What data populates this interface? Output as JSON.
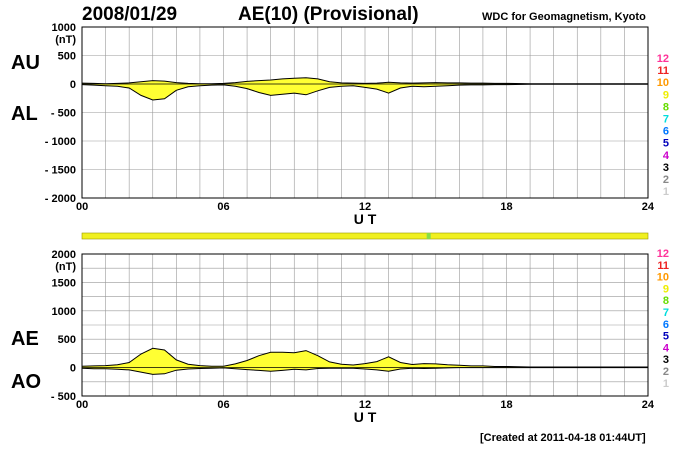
{
  "header": {
    "date": "2008/01/29",
    "title": "AE(10) (Provisional)",
    "source": "WDC for Geomagnetism, Kyoto"
  },
  "footer": {
    "created": "[Created at 2011-04-18 01:44UT]"
  },
  "colors": {
    "fill": "#ffff33",
    "grid": "#999999",
    "axis": "#000000",
    "status_bar": "#f0f020",
    "status_marker": "#88dd44"
  },
  "station_count_legend": [
    {
      "label": "12",
      "color": "#ff3399"
    },
    {
      "label": "11",
      "color": "#ee2222"
    },
    {
      "label": "10",
      "color": "#ff9900"
    },
    {
      "label": "9",
      "color": "#eeee00"
    },
    {
      "label": "8",
      "color": "#66dd00"
    },
    {
      "label": "7",
      "color": "#00dddd"
    },
    {
      "label": "6",
      "color": "#0077ff"
    },
    {
      "label": "5",
      "color": "#0000bb"
    },
    {
      "label": "4",
      "color": "#cc00cc"
    },
    {
      "label": "3",
      "color": "#000000"
    },
    {
      "label": "2",
      "color": "#888888"
    },
    {
      "label": "1",
      "color": "#cccccc"
    }
  ],
  "status_bar": {
    "marker_ut": 14.7
  },
  "chart_data": [
    {
      "type": "area",
      "panel": "upper",
      "xlabel": "U T",
      "ylabel": "(nT)",
      "side_labels": [
        "AU",
        "AL"
      ],
      "xlim": [
        0,
        24
      ],
      "ylim": [
        -2000,
        1000
      ],
      "x_ticks": [
        "00",
        "06",
        "12",
        "18",
        "24"
      ],
      "y_ticks": [
        "1000",
        "500",
        "0",
        "- 500",
        "- 1000",
        "- 1500",
        "- 2000"
      ],
      "series": [
        {
          "name": "AU",
          "x": [
            0,
            0.5,
            1,
            1.5,
            2,
            2.5,
            3,
            3.5,
            4,
            4.5,
            5,
            5.5,
            6,
            6.5,
            7,
            7.5,
            8,
            8.5,
            9,
            9.5,
            10,
            10.5,
            11,
            11.5,
            12,
            12.5,
            13,
            13.5,
            14,
            14.5,
            15,
            15.5,
            16,
            16.5,
            17,
            17.5,
            18,
            19,
            20,
            21,
            22,
            23,
            24
          ],
          "values": [
            15,
            10,
            5,
            10,
            20,
            40,
            60,
            50,
            25,
            10,
            5,
            5,
            10,
            25,
            45,
            60,
            70,
            90,
            100,
            110,
            90,
            40,
            20,
            15,
            10,
            15,
            30,
            20,
            15,
            20,
            25,
            20,
            20,
            15,
            15,
            10,
            10,
            5,
            5,
            5,
            5,
            5,
            5
          ]
        },
        {
          "name": "AL",
          "x": [
            0,
            0.5,
            1,
            1.5,
            2,
            2.5,
            3,
            3.5,
            4,
            4.5,
            5,
            5.5,
            6,
            6.5,
            7,
            7.5,
            8,
            8.5,
            9,
            9.5,
            10,
            10.5,
            11,
            11.5,
            12,
            12.5,
            13,
            13.5,
            14,
            14.5,
            15,
            15.5,
            16,
            16.5,
            17,
            17.5,
            18,
            19,
            20,
            21,
            22,
            23,
            24
          ],
          "values": [
            -10,
            -20,
            -30,
            -40,
            -70,
            -200,
            -280,
            -260,
            -110,
            -50,
            -30,
            -20,
            -15,
            -40,
            -80,
            -150,
            -200,
            -180,
            -160,
            -190,
            -120,
            -60,
            -40,
            -30,
            -60,
            -90,
            -160,
            -70,
            -40,
            -50,
            -40,
            -30,
            -20,
            -15,
            -15,
            -10,
            -10,
            -5,
            -5,
            -5,
            -5,
            -5,
            -5
          ]
        }
      ]
    },
    {
      "type": "area",
      "panel": "lower",
      "xlabel": "U T",
      "ylabel": "(nT)",
      "side_labels": [
        "AE",
        "AO"
      ],
      "xlim": [
        0,
        24
      ],
      "ylim": [
        -500,
        2000
      ],
      "x_ticks": [
        "00",
        "06",
        "12",
        "18",
        "24"
      ],
      "y_ticks": [
        "2000",
        "1500",
        "1000",
        "500",
        "0",
        "- 500"
      ],
      "series": [
        {
          "name": "AE",
          "x": [
            0,
            0.5,
            1,
            1.5,
            2,
            2.5,
            3,
            3.5,
            4,
            4.5,
            5,
            5.5,
            6,
            6.5,
            7,
            7.5,
            8,
            8.5,
            9,
            9.5,
            10,
            10.5,
            11,
            11.5,
            12,
            12.5,
            13,
            13.5,
            14,
            14.5,
            15,
            15.5,
            16,
            16.5,
            17,
            17.5,
            18,
            19,
            20,
            21,
            22,
            23,
            24
          ],
          "values": [
            25,
            30,
            35,
            50,
            90,
            240,
            340,
            310,
            135,
            60,
            35,
            25,
            25,
            65,
            125,
            210,
            270,
            270,
            260,
            300,
            210,
            100,
            60,
            45,
            70,
            105,
            190,
            90,
            55,
            70,
            65,
            50,
            40,
            30,
            30,
            20,
            20,
            10,
            10,
            10,
            10,
            10,
            10
          ]
        },
        {
          "name": "AO",
          "x": [
            0,
            0.5,
            1,
            1.5,
            2,
            2.5,
            3,
            3.5,
            4,
            4.5,
            5,
            5.5,
            6,
            6.5,
            7,
            7.5,
            8,
            8.5,
            9,
            9.5,
            10,
            10.5,
            11,
            11.5,
            12,
            12.5,
            13,
            13.5,
            14,
            14.5,
            15,
            15.5,
            16,
            16.5,
            17,
            17.5,
            18,
            19,
            20,
            21,
            22,
            23,
            24
          ],
          "values": [
            -10,
            -20,
            -20,
            -30,
            -40,
            -80,
            -120,
            -110,
            -45,
            -25,
            -15,
            -10,
            -5,
            -20,
            -35,
            -50,
            -65,
            -50,
            -30,
            -40,
            -15,
            -10,
            -10,
            -10,
            -25,
            -40,
            -65,
            -25,
            -10,
            -15,
            -10,
            -5,
            0,
            0,
            0,
            0,
            0,
            0,
            0,
            0,
            0,
            0,
            0
          ]
        }
      ]
    }
  ]
}
